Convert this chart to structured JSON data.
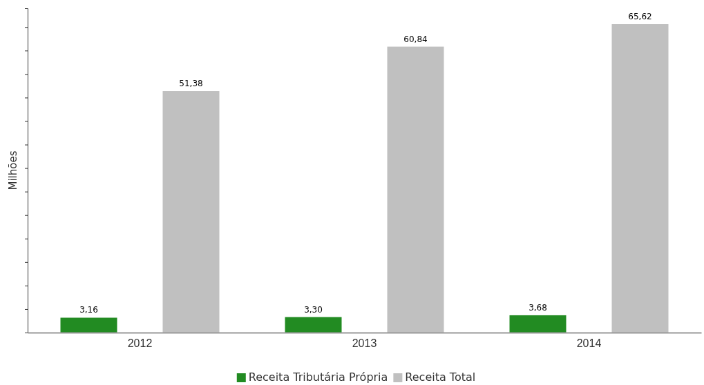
{
  "chart_data": {
    "type": "bar",
    "ylabel": "Milhões",
    "categories": [
      "2012",
      "2013",
      "2014"
    ],
    "series": [
      {
        "name": "Receita Tributária Própria",
        "color": "#228b22",
        "values": [
          3.16,
          3.3,
          3.68
        ],
        "value_labels": [
          "3,16",
          "3,30",
          "3,68"
        ]
      },
      {
        "name": "Receita Total",
        "color": "#c0c0c0",
        "values": [
          51.38,
          60.84,
          65.62
        ],
        "value_labels": [
          "51,38",
          "60,84",
          "65,62"
        ]
      }
    ],
    "ylim": [
      0,
      69
    ],
    "yticks": [
      {
        "value": 0,
        "label": null
      },
      {
        "value": 5,
        "label": null
      },
      {
        "value": 10,
        "label": null
      },
      {
        "value": 15,
        "label": null
      },
      {
        "value": 20,
        "label": null
      },
      {
        "value": 25,
        "label": null
      },
      {
        "value": 30,
        "label": null
      },
      {
        "value": 35,
        "label": null
      },
      {
        "value": 40,
        "label": null
      },
      {
        "value": 45,
        "label": null
      },
      {
        "value": 50,
        "label": null
      },
      {
        "value": 55,
        "label": null
      },
      {
        "value": 60,
        "label": null
      },
      {
        "value": 65,
        "label": null
      }
    ],
    "grid": false,
    "legend": "bottom"
  }
}
